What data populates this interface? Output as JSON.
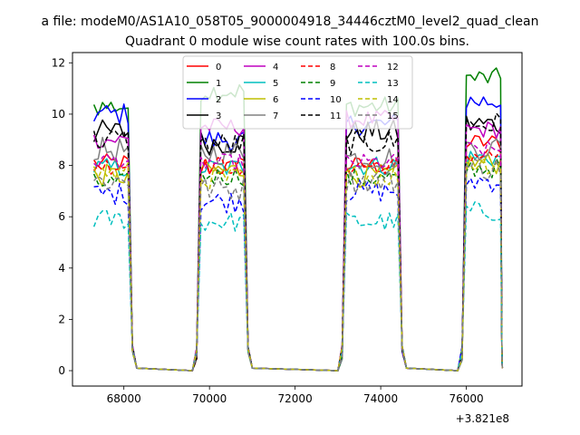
{
  "figure": {
    "suptitle": "a file: modeM0/AS1A10_058T05_9000004918_34446cztM0_level2_quad_clean",
    "offset_label": "+3.821e8"
  },
  "chart_data": {
    "type": "line",
    "title": "Quadrant 0 module wise count rates with 100.0s bins.",
    "xlabel": "",
    "ylabel": "",
    "x_offset": 382100000,
    "xlim": [
      66800,
      77300
    ],
    "ylim": [
      -0.6,
      12.4
    ],
    "x_ticks": [
      68000,
      70000,
      72000,
      74000,
      76000
    ],
    "y_ticks": [
      0,
      2,
      4,
      6,
      8,
      10,
      12
    ],
    "grid": false,
    "legend": {
      "placement": "upper center",
      "columns": 4
    },
    "segments": [
      {
        "x_start": 67300,
        "x_end": 68100
      },
      {
        "x_start": 69800,
        "x_end": 70800
      },
      {
        "x_start": 73200,
        "x_end": 74400
      },
      {
        "x_start": 76000,
        "x_end": 76800
      }
    ],
    "off_values": 0,
    "series": [
      {
        "name": "0",
        "color": "#ff0000",
        "style": "solid",
        "levels": [
          8.1,
          7.9,
          8.0,
          8.9
        ]
      },
      {
        "name": "1",
        "color": "#008000",
        "style": "solid",
        "levels": [
          10.3,
          10.9,
          10.3,
          11.4
        ]
      },
      {
        "name": "2",
        "color": "#0000ff",
        "style": "solid",
        "levels": [
          10.0,
          9.0,
          9.6,
          10.5
        ]
      },
      {
        "name": "3",
        "color": "#000000",
        "style": "solid",
        "levels": [
          9.3,
          8.9,
          9.3,
          9.6
        ]
      },
      {
        "name": "4",
        "color": "#bf00bf",
        "style": "solid",
        "levels": [
          9.0,
          9.5,
          9.8,
          9.4
        ]
      },
      {
        "name": "5",
        "color": "#00bfbf",
        "style": "solid",
        "levels": [
          7.9,
          7.9,
          8.0,
          8.3
        ]
      },
      {
        "name": "6",
        "color": "#bfbf00",
        "style": "solid",
        "levels": [
          7.6,
          7.8,
          7.6,
          8.1
        ]
      },
      {
        "name": "7",
        "color": "#808080",
        "style": "solid",
        "levels": [
          8.6,
          8.5,
          8.3,
          8.7
        ]
      },
      {
        "name": "8",
        "color": "#ff0000",
        "style": "dashed",
        "levels": [
          8.0,
          8.0,
          8.0,
          8.4
        ]
      },
      {
        "name": "9",
        "color": "#008000",
        "style": "dashed",
        "levels": [
          7.3,
          7.6,
          7.5,
          7.9
        ]
      },
      {
        "name": "10",
        "color": "#0000ff",
        "style": "dashed",
        "levels": [
          6.9,
          6.6,
          7.0,
          7.4
        ]
      },
      {
        "name": "11",
        "color": "#000000",
        "style": "dashed",
        "levels": [
          9.0,
          8.8,
          8.9,
          9.6
        ]
      },
      {
        "name": "12",
        "color": "#bf00bf",
        "style": "dashed",
        "levels": [
          8.2,
          8.1,
          8.1,
          8.6
        ]
      },
      {
        "name": "13",
        "color": "#00bfbf",
        "style": "dashed",
        "levels": [
          5.9,
          5.8,
          5.8,
          6.2
        ]
      },
      {
        "name": "14",
        "color": "#bfbf00",
        "style": "dashed",
        "levels": [
          7.7,
          7.5,
          7.6,
          8.1
        ]
      },
      {
        "name": "15",
        "color": "#808080",
        "style": "dashed",
        "levels": [
          7.4,
          7.1,
          7.4,
          7.9
        ]
      }
    ]
  }
}
